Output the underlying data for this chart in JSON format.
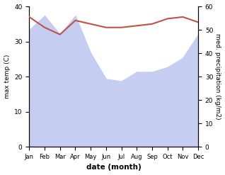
{
  "months": [
    "Jan",
    "Feb",
    "Mar",
    "Apr",
    "May",
    "Jun",
    "Jul",
    "Aug",
    "Sep",
    "Oct",
    "Nov",
    "Dec"
  ],
  "temperature": [
    37.0,
    34.0,
    32.0,
    36.0,
    35.0,
    34.0,
    34.0,
    34.5,
    35.0,
    36.5,
    37.0,
    35.5
  ],
  "precipitation": [
    50,
    56,
    48,
    56,
    40,
    29,
    28,
    32,
    32,
    34,
    38,
    48
  ],
  "temp_color": "#c0524a",
  "precip_fill_color": "#c5cdf0",
  "temp_ylim": [
    0,
    40
  ],
  "precip_ylim": [
    0,
    60
  ],
  "temp_yticks": [
    0,
    10,
    20,
    30,
    40
  ],
  "precip_yticks": [
    0,
    10,
    20,
    30,
    40,
    50,
    60
  ],
  "xlabel": "date (month)",
  "ylabel_left": "max temp (C)",
  "ylabel_right": "med. precipitation (kg/m2)",
  "figsize": [
    3.18,
    2.47
  ],
  "dpi": 100
}
